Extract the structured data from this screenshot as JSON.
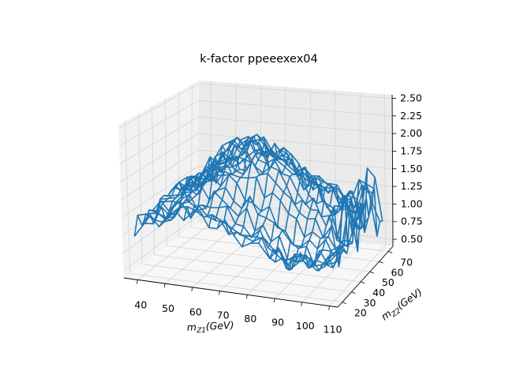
{
  "chart_data": {
    "type": "surface-wireframe-3d",
    "title": "k-factor ppeeexex04",
    "x_axis": {
      "label_main": "m",
      "label_sub": "Z1",
      "label_unit": "(GeV)",
      "ticks": [
        40,
        50,
        60,
        70,
        80,
        90,
        100,
        110
      ],
      "range": [
        35,
        113
      ]
    },
    "y_axis": {
      "label_main": "m",
      "label_sub": "Z2",
      "label_unit": "(GeV)",
      "ticks": [
        20,
        30,
        40,
        50,
        60,
        70
      ],
      "range": [
        15,
        75
      ]
    },
    "z_axis": {
      "ticks": [
        "0.50",
        "0.75",
        "1.00",
        "1.25",
        "1.50",
        "1.75",
        "2.00",
        "2.25",
        "2.50"
      ],
      "range": [
        0.4,
        2.55
      ]
    },
    "grid": true,
    "series_color": "#1f77b4",
    "description_grid": {
      "x_start": 38,
      "x_step": 3,
      "x_count": 25,
      "y_start": 18,
      "y_step": 3,
      "y_count": 19
    }
  }
}
